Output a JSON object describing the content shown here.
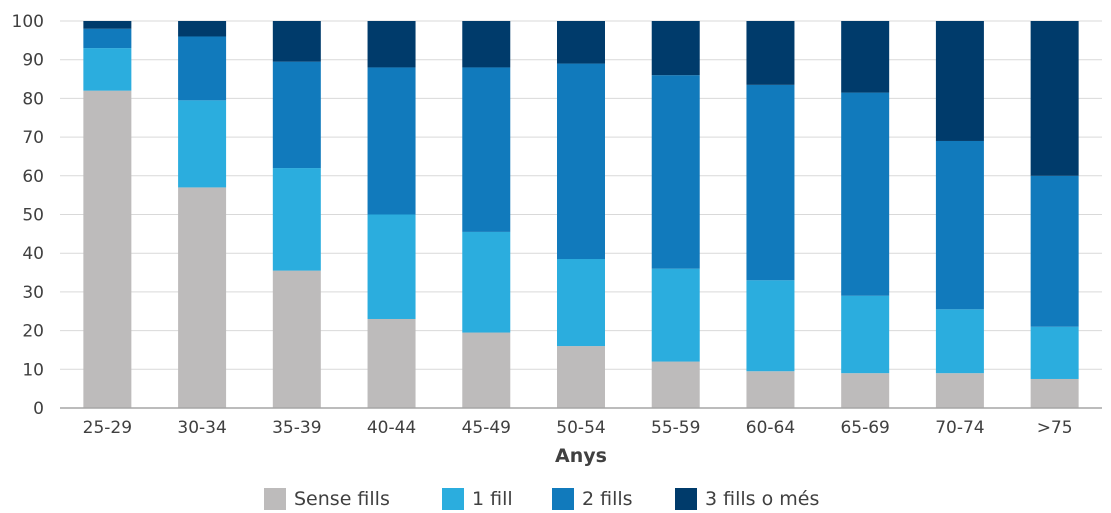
{
  "chart_data": {
    "type": "bar",
    "stacked": true,
    "title": "",
    "xlabel": "Anys",
    "ylabel": "",
    "ylim": [
      0,
      100
    ],
    "yticks": [
      0,
      10,
      20,
      30,
      40,
      50,
      60,
      70,
      80,
      90,
      100
    ],
    "grid": "horizontal",
    "legend_position": "bottom",
    "categories": [
      "25-29",
      "30-34",
      "35-39",
      "40-44",
      "45-49",
      "50-54",
      "55-59",
      "60-64",
      "65-69",
      "70-74",
      ">75"
    ],
    "series": [
      {
        "name": "Sense fills",
        "color": "#bdbbbb",
        "values": [
          82,
          57,
          35.5,
          23,
          19.5,
          16,
          12,
          9.5,
          9,
          9,
          7.5
        ]
      },
      {
        "name": "1 fill",
        "color": "#2badde",
        "values": [
          11,
          22.5,
          26.5,
          27,
          26,
          22.5,
          24,
          23.5,
          20,
          16.5,
          13.5
        ]
      },
      {
        "name": "2 fills",
        "color": "#117abc",
        "values": [
          5,
          16.5,
          27.5,
          38,
          42.5,
          50.5,
          50,
          50.5,
          52.5,
          43.5,
          39
        ]
      },
      {
        "name": "3 fills o més",
        "color": "#003b6b",
        "values": [
          2,
          4,
          10.5,
          12,
          12,
          11,
          14,
          16.5,
          18.5,
          31,
          40
        ]
      }
    ]
  }
}
